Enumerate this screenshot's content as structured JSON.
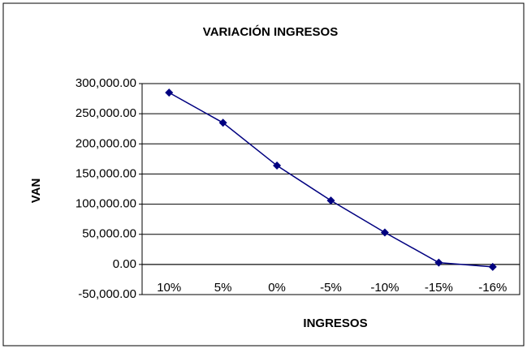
{
  "chart_data": {
    "type": "line",
    "title": "VARIACIÓN INGRESOS",
    "x_label": "INGRESOS",
    "y_label": "VAN",
    "categories": [
      "10%",
      "5%",
      "0%",
      "-5%",
      "-10%",
      "-15%",
      "-16%"
    ],
    "series": [
      {
        "name": "VAN",
        "color": "#000080",
        "values": [
          285000,
          235000,
          164000,
          106000,
          53000,
          3000,
          -4000
        ]
      }
    ],
    "ylim": [
      -50000,
      300000
    ],
    "yticks": [
      {
        "value": -50000,
        "label": "-50,000.00"
      },
      {
        "value": 0,
        "label": "0.00"
      },
      {
        "value": 50000,
        "label": "50,000.00"
      },
      {
        "value": 100000,
        "label": "100,000.00"
      },
      {
        "value": 150000,
        "label": "150,000.00"
      },
      {
        "value": 200000,
        "label": "200,000.00"
      },
      {
        "value": 250000,
        "label": "250,000.00"
      },
      {
        "value": 300000,
        "label": "300,000.00"
      }
    ],
    "grid": true
  }
}
